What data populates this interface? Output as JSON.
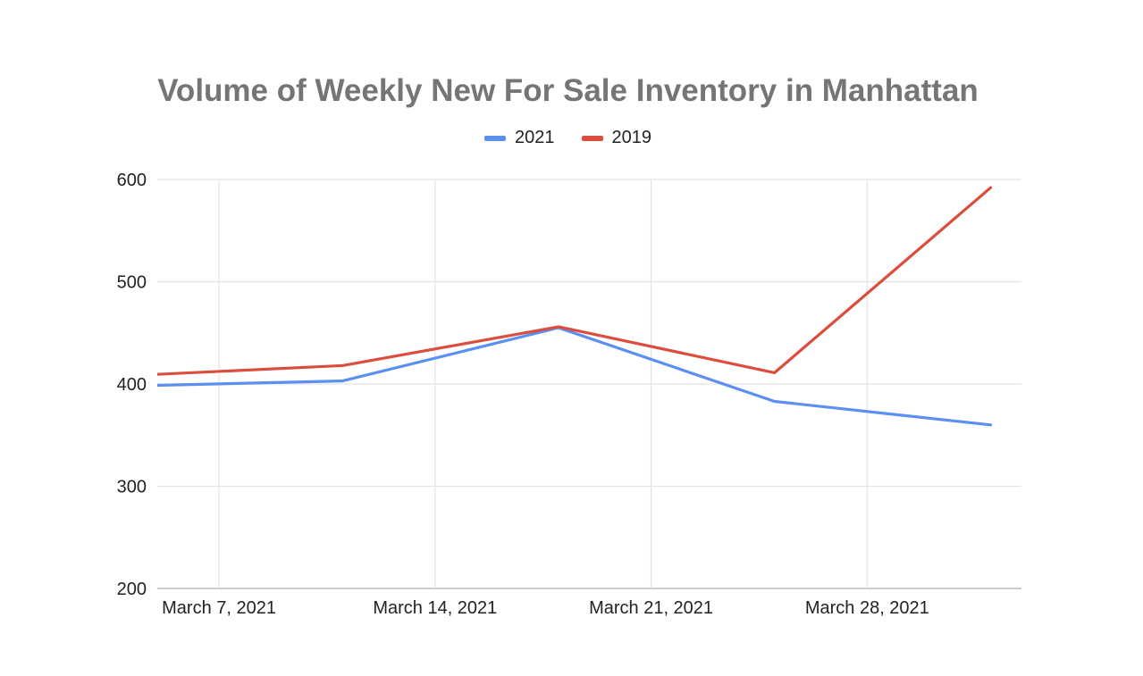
{
  "chart_data": {
    "type": "line",
    "title": "Volume of Weekly New For Sale Inventory in Manhattan",
    "xlabel": "",
    "ylabel": "",
    "x": [
      "2021-03-04",
      "2021-03-11",
      "2021-03-18",
      "2021-03-25",
      "2021-04-01"
    ],
    "x_ticks": [
      "2021-03-07",
      "2021-03-14",
      "2021-03-21",
      "2021-03-28"
    ],
    "x_tick_labels": [
      "March 7, 2021",
      "March 14, 2021",
      "March 21, 2021",
      "March 28, 2021"
    ],
    "x_range": [
      "2021-03-05",
      "2021-04-02"
    ],
    "ylim": [
      200,
      600
    ],
    "y_ticks": [
      200,
      300,
      400,
      500,
      600
    ],
    "grid": true,
    "legend_position": "top",
    "series": [
      {
        "name": "2021",
        "color": "#5b8ff0",
        "values": [
          398,
          403,
          455,
          383,
          360
        ]
      },
      {
        "name": "2019",
        "color": "#db4e3e",
        "values": [
          408,
          418,
          456,
          411,
          592
        ]
      }
    ]
  }
}
